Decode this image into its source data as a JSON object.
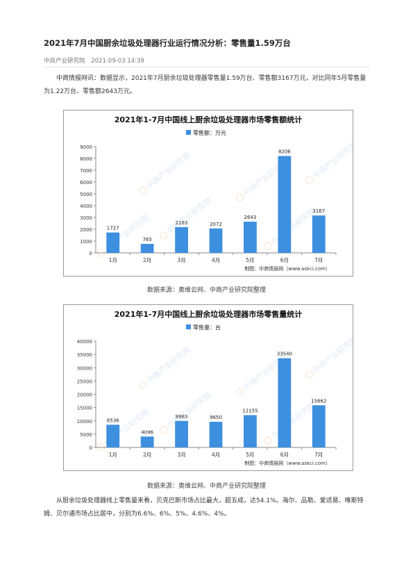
{
  "article": {
    "title": "2021年7月中国厨余垃圾处理器行业运行情况分析：零售量1.59万台",
    "source": "中商产业研究院",
    "datetime": "2021-09-03 14:39",
    "para1": "中商情报网讯：数据显示，2021年7月厨余垃圾处理器零售量1.59万台、零售额3167万元，对比同年5月零售量为1.22万台、零售额2643万元。",
    "para2": "从厨余垃圾处理器线上零售量来看，贝克巴斯市场占比最大，超五成，达54.1%。海尔、品勒、爱适易、唯斯特姆、贝尔通市场占比居中，分别为6.6%、6%、5%、4.6%、4%。"
  },
  "chart_data": [
    {
      "type": "bar",
      "title": "2021年1-7月中国线上厨余垃圾处理器市场零售额统计",
      "legend": "零售额：万元",
      "credit": "制图：中商情报网（www.askci.com）",
      "caption": "数据来源：奥维云网、中商产业研究院整理",
      "categories": [
        "1月",
        "2月",
        "3月",
        "4月",
        "5月",
        "6月",
        "7月"
      ],
      "values": [
        1727,
        765,
        2183,
        2072,
        2643,
        8206,
        3167
      ],
      "yticks": [
        "0",
        "1000",
        "2000",
        "3000",
        "4000",
        "5000",
        "6000",
        "7000",
        "8000",
        "9000"
      ],
      "ylim": [
        0,
        9000
      ],
      "grid": false,
      "color": "#3d8fe0",
      "watermark": "中商产业研究院"
    },
    {
      "type": "bar",
      "title": "2021年1-7月中国线上厨余垃圾处理器市场零售量统计",
      "legend": "零售量：台",
      "credit": "制图：中商情报网（www.askci.com）",
      "caption": "数据来源：奥维云网、中商产业研究院整理",
      "categories": [
        "1月",
        "2月",
        "3月",
        "4月",
        "5月",
        "6月",
        "7月"
      ],
      "values": [
        8536,
        4096,
        9983,
        9650,
        12155,
        33540,
        15862
      ],
      "yticks": [
        "0",
        "5000",
        "10000",
        "15000",
        "20000",
        "25000",
        "30000",
        "35000",
        "40000"
      ],
      "ylim": [
        0,
        40000
      ],
      "grid": false,
      "color": "#3d8fe0",
      "watermark": "中商产业研究院"
    }
  ]
}
